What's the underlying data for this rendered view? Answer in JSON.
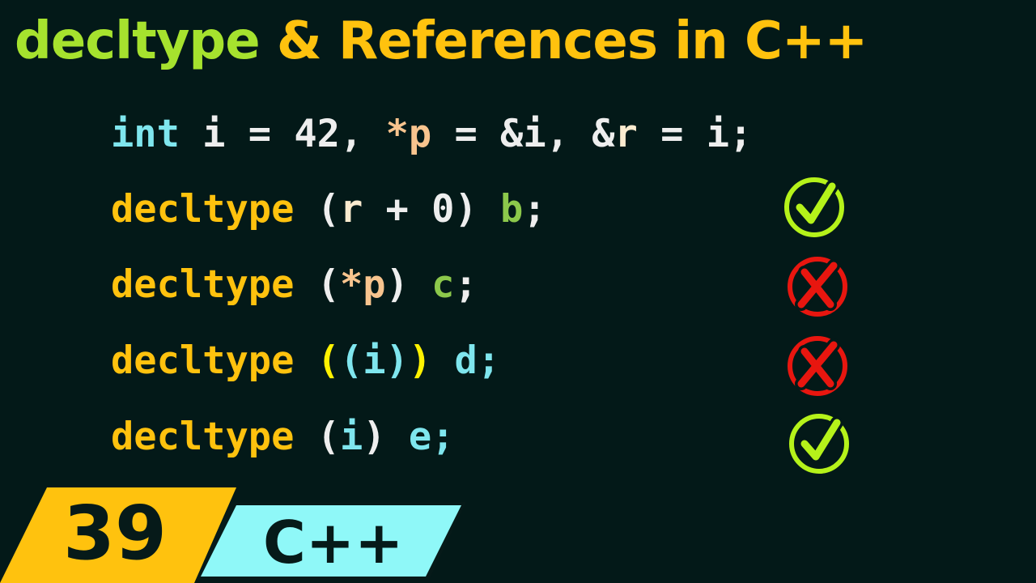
{
  "title": {
    "part1": "decltype",
    "part2": "& References in C++"
  },
  "code_lines": [
    {
      "tokens": [
        "int",
        " i = 42, ",
        "*p",
        " = &i, &",
        "r",
        " = i;"
      ]
    },
    {
      "tokens": [
        "decltype",
        " (",
        "r",
        " + 0) ",
        "b",
        ";"
      ],
      "result": "check"
    },
    {
      "tokens": [
        "decltype",
        " (",
        "*p",
        ") ",
        "c",
        ";"
      ],
      "result": "cross"
    },
    {
      "tokens": [
        "decltype",
        " (",
        "(i)",
        ")",
        " d",
        ";"
      ],
      "result": "cross"
    },
    {
      "tokens": [
        "decltype",
        " (",
        "i",
        ") ",
        "e",
        ";"
      ],
      "result": "check"
    }
  ],
  "badge": {
    "number": "39",
    "language": "C++"
  },
  "colors": {
    "background": "#031918",
    "title_green": "#a6e22e",
    "title_yellow": "#ffc20e",
    "check": "#b5f21a",
    "cross": "#e8160f",
    "badge_yellow": "#ffc20e",
    "badge_cyan": "#8ff8f8"
  }
}
